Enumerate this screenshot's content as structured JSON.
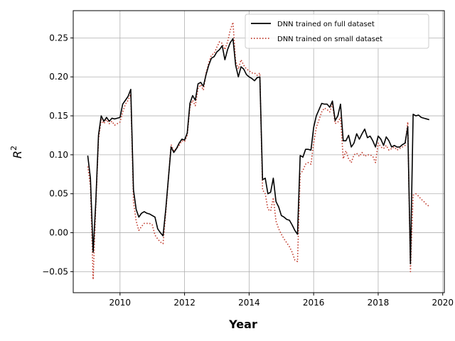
{
  "chart_data": {
    "type": "line",
    "title": "",
    "xlabel": "Year",
    "ylabel": "R",
    "ylabel_superscript": "2",
    "xlim": [
      2008.55,
      2020.05
    ],
    "ylim": [
      -0.077,
      0.285
    ],
    "xticks": [
      2010,
      2012,
      2014,
      2016,
      2018,
      2020
    ],
    "xtick_labels": [
      "2010",
      "2012",
      "2014",
      "2016",
      "2018",
      "2020"
    ],
    "yticks": [
      -0.05,
      0.0,
      0.05,
      0.1,
      0.15,
      0.2,
      0.25
    ],
    "ytick_labels": [
      "−0.05",
      "0.00",
      "0.05",
      "0.10",
      "0.15",
      "0.20",
      "0.25"
    ],
    "grid": true,
    "legend_position": "top-right",
    "series": [
      {
        "name": "DNN trained on full dataset",
        "color": "#000000",
        "style": "solid",
        "x": [
          2009.0,
          2009.083,
          2009.167,
          2009.25,
          2009.333,
          2009.417,
          2009.5,
          2009.583,
          2009.667,
          2009.75,
          2009.833,
          2009.917,
          2010.0,
          2010.083,
          2010.167,
          2010.25,
          2010.333,
          2010.417,
          2010.5,
          2010.583,
          2010.667,
          2010.75,
          2010.833,
          2010.917,
          2011.0,
          2011.083,
          2011.167,
          2011.25,
          2011.333,
          2011.417,
          2011.5,
          2011.583,
          2011.667,
          2011.75,
          2011.833,
          2011.917,
          2012.0,
          2012.083,
          2012.167,
          2012.25,
          2012.333,
          2012.417,
          2012.5,
          2012.583,
          2012.667,
          2012.75,
          2012.833,
          2012.917,
          2013.0,
          2013.083,
          2013.167,
          2013.25,
          2013.333,
          2013.417,
          2013.5,
          2013.583,
          2013.667,
          2013.75,
          2013.833,
          2013.917,
          2014.0,
          2014.083,
          2014.167,
          2014.25,
          2014.333,
          2014.417,
          2014.5,
          2014.583,
          2014.667,
          2014.75,
          2014.833,
          2014.917,
          2015.0,
          2015.083,
          2015.167,
          2015.25,
          2015.333,
          2015.417,
          2015.5,
          2015.583,
          2015.667,
          2015.75,
          2015.833,
          2015.917,
          2016.0,
          2016.083,
          2016.167,
          2016.25,
          2016.333,
          2016.417,
          2016.5,
          2016.583,
          2016.667,
          2016.75,
          2016.833,
          2016.917,
          2017.0,
          2017.083,
          2017.167,
          2017.25,
          2017.333,
          2017.417,
          2017.5,
          2017.583,
          2017.667,
          2017.75,
          2017.833,
          2017.917,
          2018.0,
          2018.083,
          2018.167,
          2018.25,
          2018.333,
          2018.417,
          2018.5,
          2018.583,
          2018.667,
          2018.75,
          2018.833,
          2018.917,
          2019.0,
          2019.083,
          2019.167,
          2019.25,
          2019.333,
          2019.417,
          2019.5,
          2019.583
        ],
        "values": [
          0.099,
          0.07,
          -0.025,
          0.04,
          0.125,
          0.15,
          0.143,
          0.148,
          0.143,
          0.147,
          0.146,
          0.147,
          0.148,
          0.165,
          0.17,
          0.175,
          0.184,
          0.055,
          0.03,
          0.02,
          0.025,
          0.027,
          0.025,
          0.024,
          0.022,
          0.02,
          0.005,
          0.0,
          -0.004,
          0.03,
          0.07,
          0.11,
          0.103,
          0.108,
          0.115,
          0.12,
          0.119,
          0.128,
          0.166,
          0.176,
          0.17,
          0.191,
          0.193,
          0.188,
          0.203,
          0.215,
          0.224,
          0.226,
          0.232,
          0.235,
          0.24,
          0.222,
          0.235,
          0.244,
          0.249,
          0.215,
          0.2,
          0.213,
          0.21,
          0.203,
          0.2,
          0.198,
          0.195,
          0.199,
          0.2,
          0.068,
          0.07,
          0.05,
          0.052,
          0.07,
          0.04,
          0.033,
          0.022,
          0.02,
          0.017,
          0.016,
          0.01,
          0.003,
          -0.002,
          0.099,
          0.097,
          0.107,
          0.107,
          0.106,
          0.135,
          0.15,
          0.158,
          0.166,
          0.165,
          0.165,
          0.161,
          0.169,
          0.144,
          0.15,
          0.165,
          0.118,
          0.118,
          0.125,
          0.11,
          0.115,
          0.127,
          0.12,
          0.127,
          0.133,
          0.122,
          0.124,
          0.118,
          0.11,
          0.124,
          0.12,
          0.112,
          0.123,
          0.118,
          0.11,
          0.112,
          0.11,
          0.11,
          0.113,
          0.115,
          0.136,
          -0.04,
          0.152,
          0.15,
          0.151,
          0.148,
          0.147,
          0.146,
          0.145
        ]
      },
      {
        "name": "DNN trained on small dataset",
        "color": "#c0392b",
        "style": "dotted",
        "x": [
          2009.0,
          2009.083,
          2009.167,
          2009.25,
          2009.333,
          2009.417,
          2009.5,
          2009.583,
          2009.667,
          2009.75,
          2009.833,
          2009.917,
          2010.0,
          2010.083,
          2010.167,
          2010.25,
          2010.333,
          2010.417,
          2010.5,
          2010.583,
          2010.667,
          2010.75,
          2010.833,
          2010.917,
          2011.0,
          2011.083,
          2011.167,
          2011.25,
          2011.333,
          2011.417,
          2011.5,
          2011.583,
          2011.667,
          2011.75,
          2011.833,
          2011.917,
          2012.0,
          2012.083,
          2012.167,
          2012.25,
          2012.333,
          2012.417,
          2012.5,
          2012.583,
          2012.667,
          2012.75,
          2012.833,
          2012.917,
          2013.0,
          2013.083,
          2013.167,
          2013.25,
          2013.333,
          2013.417,
          2013.5,
          2013.583,
          2013.667,
          2013.75,
          2013.833,
          2013.917,
          2014.0,
          2014.083,
          2014.167,
          2014.25,
          2014.333,
          2014.417,
          2014.5,
          2014.583,
          2014.667,
          2014.75,
          2014.833,
          2014.917,
          2015.0,
          2015.083,
          2015.167,
          2015.25,
          2015.333,
          2015.417,
          2015.5,
          2015.583,
          2015.667,
          2015.75,
          2015.833,
          2015.917,
          2016.0,
          2016.083,
          2016.167,
          2016.25,
          2016.333,
          2016.417,
          2016.5,
          2016.583,
          2016.667,
          2016.75,
          2016.833,
          2016.917,
          2017.0,
          2017.083,
          2017.167,
          2017.25,
          2017.333,
          2017.417,
          2017.5,
          2017.583,
          2017.667,
          2017.75,
          2017.833,
          2017.917,
          2018.0,
          2018.083,
          2018.167,
          2018.25,
          2018.333,
          2018.417,
          2018.5,
          2018.583,
          2018.667,
          2018.75,
          2018.833,
          2018.917,
          2019.0,
          2019.083,
          2019.167,
          2019.25,
          2019.333,
          2019.417,
          2019.5,
          2019.583
        ],
        "values": [
          0.085,
          0.06,
          -0.06,
          0.035,
          0.12,
          0.145,
          0.14,
          0.145,
          0.14,
          0.143,
          0.138,
          0.14,
          0.142,
          0.155,
          0.165,
          0.17,
          0.178,
          0.04,
          0.015,
          0.003,
          0.008,
          0.012,
          0.012,
          0.012,
          0.01,
          -0.003,
          -0.008,
          -0.012,
          -0.014,
          0.025,
          0.07,
          0.113,
          0.105,
          0.108,
          0.112,
          0.118,
          0.117,
          0.125,
          0.162,
          0.17,
          0.163,
          0.185,
          0.19,
          0.183,
          0.205,
          0.218,
          0.228,
          0.23,
          0.238,
          0.245,
          0.243,
          0.235,
          0.245,
          0.26,
          0.27,
          0.22,
          0.21,
          0.222,
          0.215,
          0.21,
          0.208,
          0.205,
          0.205,
          0.202,
          0.205,
          0.055,
          0.05,
          0.03,
          0.028,
          0.045,
          0.015,
          0.005,
          -0.002,
          -0.008,
          -0.013,
          -0.018,
          -0.025,
          -0.035,
          -0.037,
          0.075,
          0.08,
          0.088,
          0.09,
          0.088,
          0.115,
          0.135,
          0.145,
          0.155,
          0.16,
          0.158,
          0.155,
          0.165,
          0.14,
          0.142,
          0.148,
          0.095,
          0.105,
          0.095,
          0.09,
          0.1,
          0.102,
          0.098,
          0.103,
          0.098,
          0.1,
          0.1,
          0.098,
          0.09,
          0.115,
          0.11,
          0.108,
          0.112,
          0.106,
          0.108,
          0.11,
          0.106,
          0.108,
          0.11,
          0.112,
          0.142,
          -0.05,
          0.048,
          0.05,
          0.047,
          0.043,
          0.04,
          0.036,
          0.034
        ]
      }
    ]
  }
}
